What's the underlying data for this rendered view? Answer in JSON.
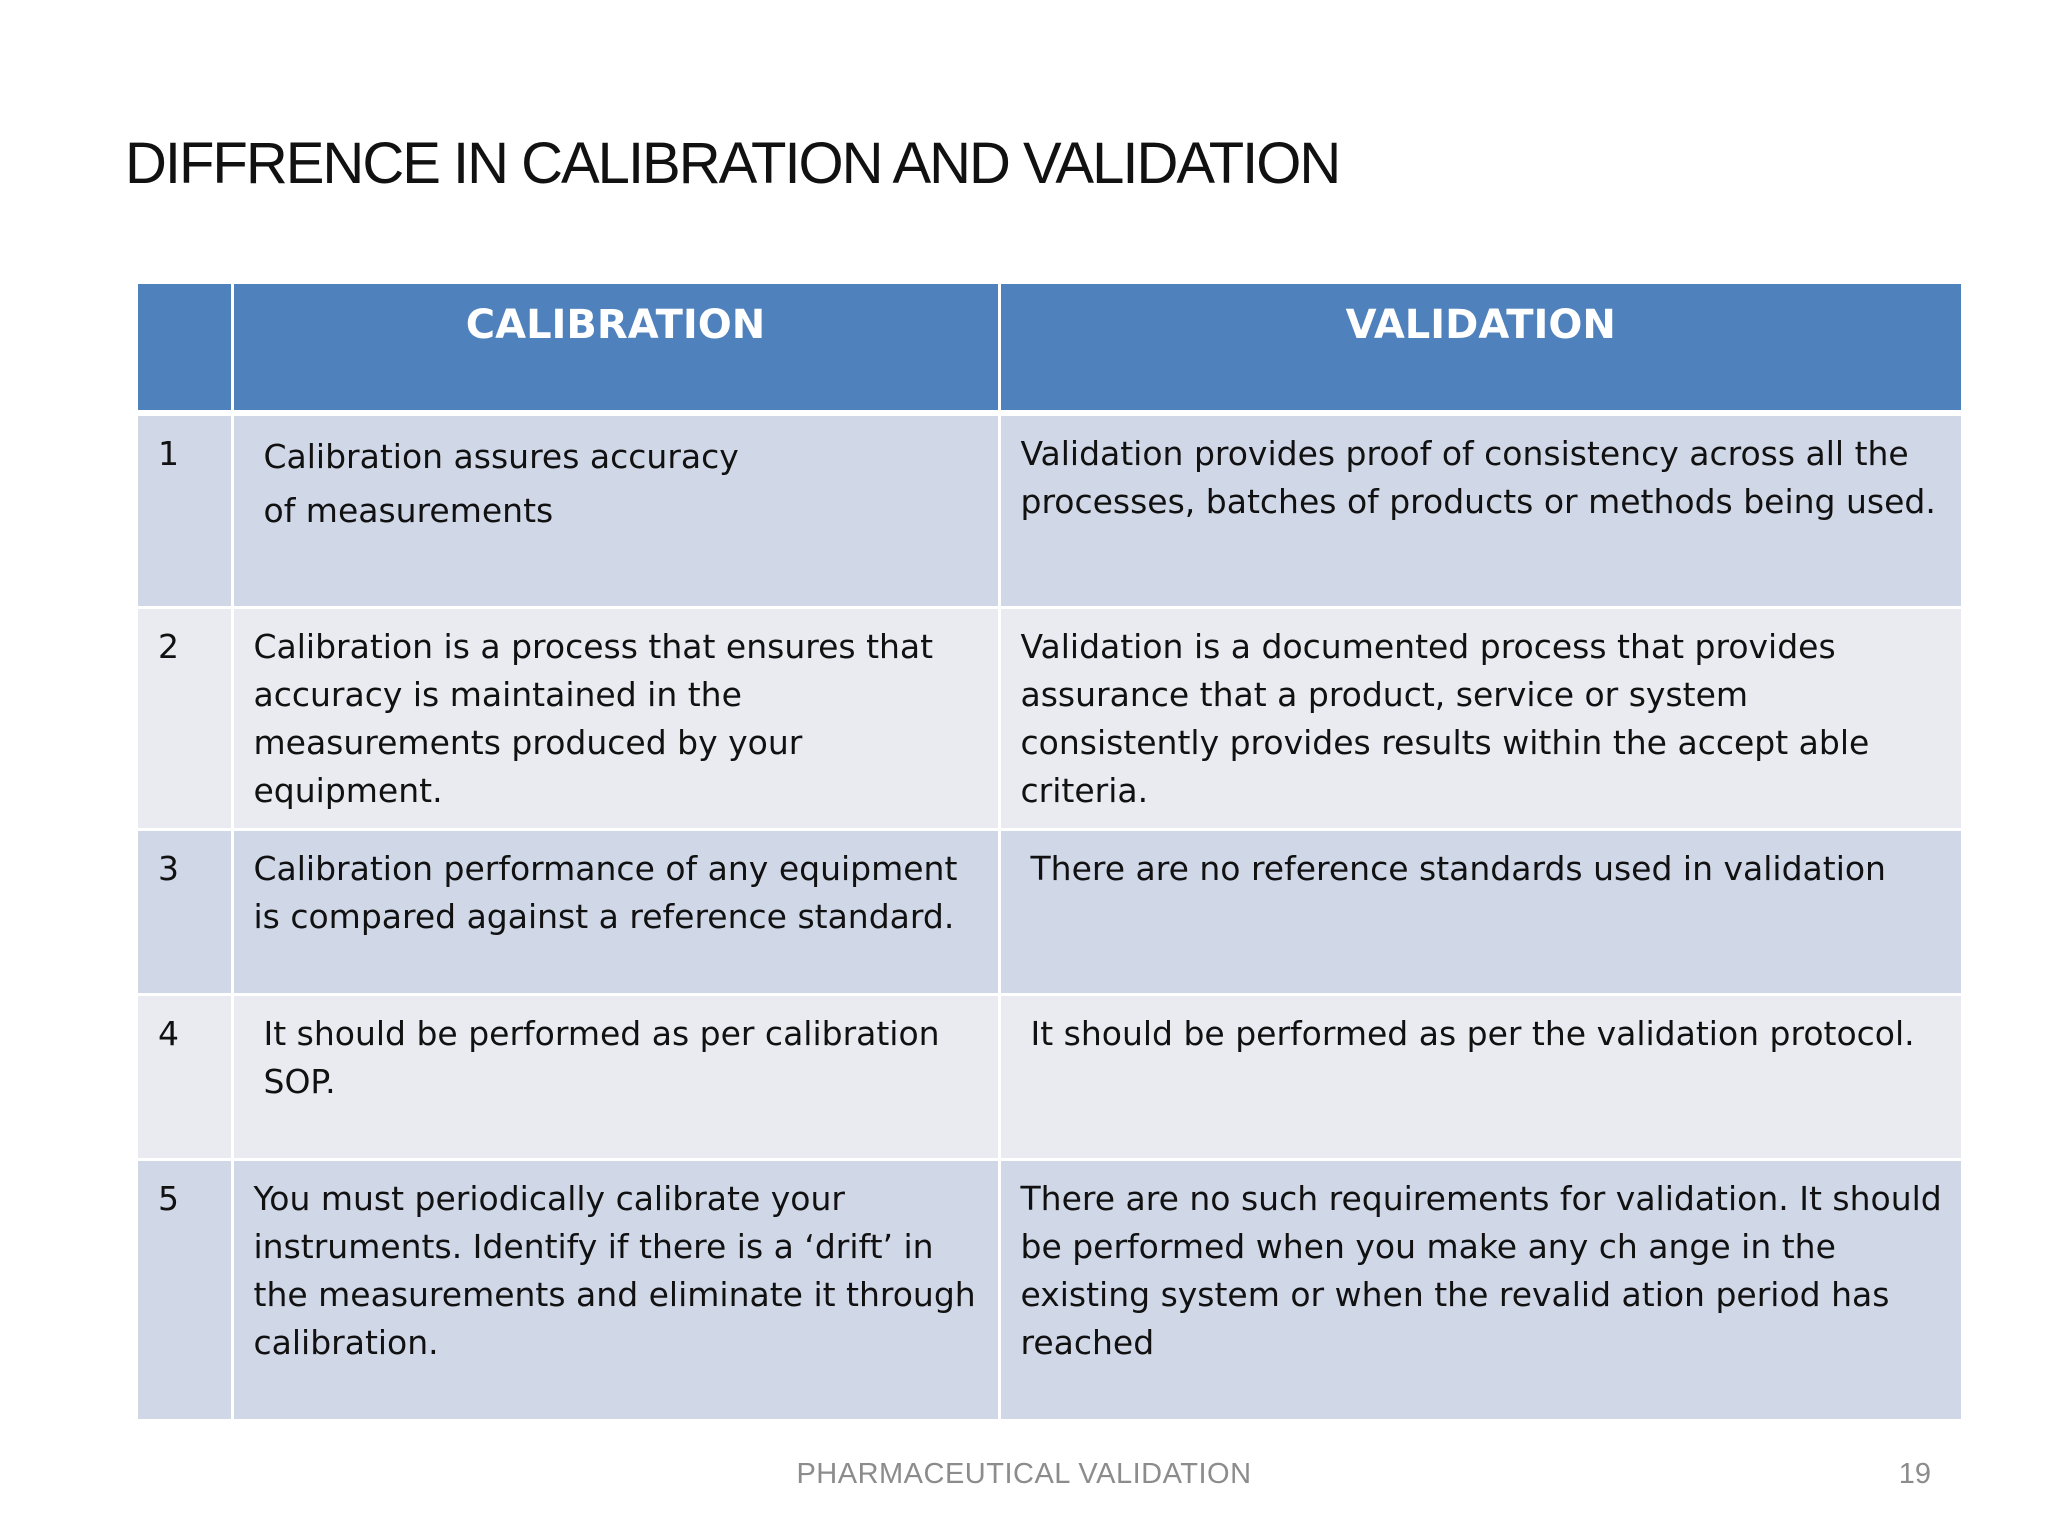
{
  "slide": {
    "title": "DIFFRENCE IN CALIBRATION AND VALIDATION",
    "footer": "PHARMACEUTICAL VALIDATION",
    "page_number": "19"
  },
  "table": {
    "headers": {
      "number": "",
      "calibration": "CALIBRATION",
      "validation": "VALIDATION"
    },
    "rows": [
      {
        "number": "1",
        "calibration": "Calibration assures accuracy\nof measurements",
        "validation": "Validation provides proof of consistency across  all the processes, batches of products or methods being used."
      },
      {
        "number": "2",
        "calibration": "Calibration is a process that ensures that accuracy is maintained in the measurements produced by your equipment.",
        "validation": "Validation is a documented process that provides assurance that a product, service or system  consistently provides results within the accept  able criteria."
      },
      {
        "number": "3",
        "calibration": "Calibration performance of any equipment is compared against a reference standard.",
        "validation": "There are no reference standards used in validation"
      },
      {
        "number": "4",
        "calibration": "It should be performed as per calibration SOP.",
        "validation": "It should be performed as per the validation protocol."
      },
      {
        "number": "5",
        "calibration": "You must periodically calibrate your instruments. Identify if there is a ‘drift’ in the measurements and eliminate it through calibration.",
        "validation": "There are no such requirements for validation.  It should be performed when you make any ch  ange in the existing system or when the revalid  ation period has reached"
      }
    ]
  },
  "colors": {
    "header_bg": "#4f81bd",
    "row_odd_bg": "#d0d8e8",
    "row_even_bg": "#e9ebf1",
    "footer_text": "#8c8c8c"
  }
}
